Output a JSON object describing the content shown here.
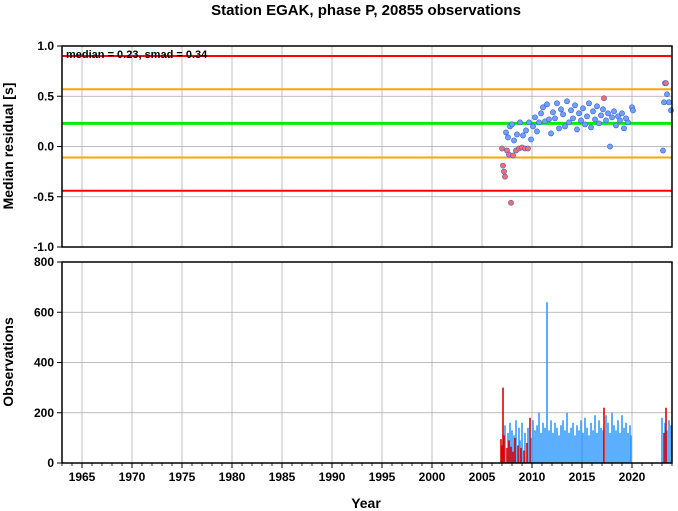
{
  "chart_data": [
    {
      "type": "scatter",
      "title": "Station EGAK, phase P, 20855 observations",
      "xlabel": "",
      "ylabel": "Median residual [s]",
      "xlim": [
        1963,
        2024
      ],
      "ylim": [
        -1.0,
        1.0
      ],
      "yticks": [
        "1.0",
        "0.5",
        "0.0",
        "-0.5",
        "-1.0"
      ],
      "ytick_values": [
        1.0,
        0.5,
        0.0,
        -0.5,
        -1.0
      ],
      "grid": true,
      "annotation": "median = 0.23, smad = 0.34",
      "reference_lines": [
        {
          "y": 0.9,
          "color": "#ff0000"
        },
        {
          "y": 0.57,
          "color": "#ffa500"
        },
        {
          "y": 0.23,
          "color": "#00ee00"
        },
        {
          "y": -0.11,
          "color": "#ffa500"
        },
        {
          "y": -0.44,
          "color": "#ff0000"
        }
      ],
      "colors": {
        "few_obs": "#ff6b6b",
        "many_obs": "#6fa0ff",
        "edge": "#3a5fcd"
      },
      "series": [
        {
          "color_key": "few_obs",
          "x": [
            2007.0,
            2007.1,
            2007.2,
            2007.3,
            2007.5,
            2007.7,
            2007.9,
            2008.1,
            2008.4,
            2008.7,
            2009.0,
            2009.3,
            2009.6,
            2017.2,
            2023.3,
            2023.4
          ],
          "y": [
            -0.02,
            -0.19,
            -0.25,
            -0.3,
            -0.04,
            -0.08,
            -0.56,
            -0.09,
            -0.04,
            -0.02,
            -0.01,
            -0.02,
            -0.02,
            0.48,
            0.63,
            0.63
          ]
        },
        {
          "color_key": "many_obs",
          "x": [
            2007.4,
            2007.6,
            2007.8,
            2008.0,
            2008.2,
            2008.5,
            2008.8,
            2009.1,
            2009.4,
            2009.7,
            2009.9,
            2010.1,
            2010.3,
            2010.5,
            2010.7,
            2010.9,
            2011.1,
            2011.3,
            2011.5,
            2011.7,
            2011.9,
            2012.1,
            2012.3,
            2012.5,
            2012.7,
            2012.9,
            2013.1,
            2013.3,
            2013.5,
            2013.7,
            2013.9,
            2014.1,
            2014.3,
            2014.5,
            2014.7,
            2014.9,
            2015.1,
            2015.3,
            2015.5,
            2015.7,
            2015.9,
            2016.1,
            2016.3,
            2016.5,
            2016.7,
            2016.9,
            2017.1,
            2017.4,
            2017.6,
            2017.8,
            2018.0,
            2018.2,
            2018.4,
            2018.6,
            2018.8,
            2019.0,
            2019.2,
            2019.4,
            2019.6,
            2020.0,
            2020.1,
            2023.1,
            2023.2,
            2023.5,
            2023.7,
            2023.9
          ],
          "y": [
            0.14,
            0.09,
            0.2,
            0.22,
            0.06,
            0.12,
            0.24,
            0.11,
            0.16,
            0.24,
            0.07,
            0.2,
            0.29,
            0.15,
            0.24,
            0.33,
            0.39,
            0.25,
            0.42,
            0.27,
            0.13,
            0.34,
            0.28,
            0.43,
            0.18,
            0.37,
            0.32,
            0.2,
            0.45,
            0.24,
            0.36,
            0.28,
            0.41,
            0.17,
            0.33,
            0.26,
            0.38,
            0.22,
            0.3,
            0.43,
            0.19,
            0.35,
            0.27,
            0.4,
            0.23,
            0.31,
            0.37,
            0.26,
            0.33,
            0.0,
            0.29,
            0.35,
            0.21,
            0.3,
            0.26,
            0.33,
            0.18,
            0.28,
            0.24,
            0.39,
            0.36,
            -0.04,
            0.44,
            0.52,
            0.44,
            0.36
          ]
        }
      ]
    },
    {
      "type": "bar",
      "title": "",
      "xlabel": "Year",
      "ylabel": "Observations",
      "xlim": [
        1963,
        2024
      ],
      "ylim": [
        0,
        800
      ],
      "yticks": [
        "800",
        "600",
        "400",
        "200",
        "0"
      ],
      "ytick_values": [
        800,
        600,
        400,
        200,
        0
      ],
      "xticks": [
        "1965",
        "1970",
        "1975",
        "1980",
        "1985",
        "1990",
        "1995",
        "2000",
        "2005",
        "2010",
        "2015",
        "2020"
      ],
      "xtick_values": [
        1965,
        1970,
        1975,
        1980,
        1985,
        1990,
        1995,
        2000,
        2005,
        2010,
        2015,
        2020
      ],
      "grid": true,
      "colors": {
        "few_obs": "#e00000",
        "many_obs": "#3399ff"
      },
      "series": [
        {
          "color_key": "few_obs",
          "x": [
            2006.9,
            2007.0,
            2007.1,
            2007.2,
            2007.5,
            2007.7,
            2007.9,
            2008.1,
            2008.3,
            2008.6,
            2008.9,
            2009.2,
            2009.5,
            2009.8,
            2017.2,
            2023.2,
            2023.4
          ],
          "values": [
            95,
            70,
            300,
            110,
            60,
            90,
            65,
            45,
            100,
            70,
            60,
            50,
            80,
            180,
            220,
            120,
            220
          ]
        },
        {
          "color_key": "many_obs",
          "x": [
            2007.3,
            2007.6,
            2007.8,
            2008.0,
            2008.2,
            2008.4,
            2008.7,
            2008.8,
            2009.0,
            2009.3,
            2009.6,
            2009.9,
            2010.1,
            2010.3,
            2010.5,
            2010.7,
            2010.9,
            2011.1,
            2011.3,
            2011.5,
            2011.7,
            2011.9,
            2012.1,
            2012.3,
            2012.5,
            2012.7,
            2012.9,
            2013.1,
            2013.3,
            2013.5,
            2013.7,
            2013.9,
            2014.1,
            2014.3,
            2014.5,
            2014.7,
            2014.9,
            2015.1,
            2015.3,
            2015.5,
            2015.7,
            2015.9,
            2016.1,
            2016.3,
            2016.5,
            2016.7,
            2016.9,
            2017.1,
            2017.4,
            2017.6,
            2017.8,
            2018.0,
            2018.2,
            2018.4,
            2018.6,
            2018.8,
            2019.0,
            2019.2,
            2019.4,
            2019.6,
            2019.8,
            2019.9,
            2023.0,
            2023.3,
            2023.5,
            2023.7,
            2023.9
          ],
          "values": [
            150,
            120,
            160,
            130,
            110,
            170,
            140,
            90,
            160,
            120,
            140,
            100,
            170,
            130,
            150,
            200,
            120,
            160,
            140,
            640,
            130,
            170,
            120,
            160,
            140,
            110,
            150,
            170,
            130,
            200,
            120,
            140,
            160,
            110,
            150,
            130,
            170,
            120,
            180,
            140,
            110,
            160,
            130,
            190,
            120,
            170,
            140,
            130,
            190,
            160,
            120,
            200,
            150,
            130,
            170,
            120,
            190,
            140,
            160,
            120,
            150,
            110,
            180,
            160,
            130,
            170,
            150
          ]
        }
      ]
    }
  ]
}
